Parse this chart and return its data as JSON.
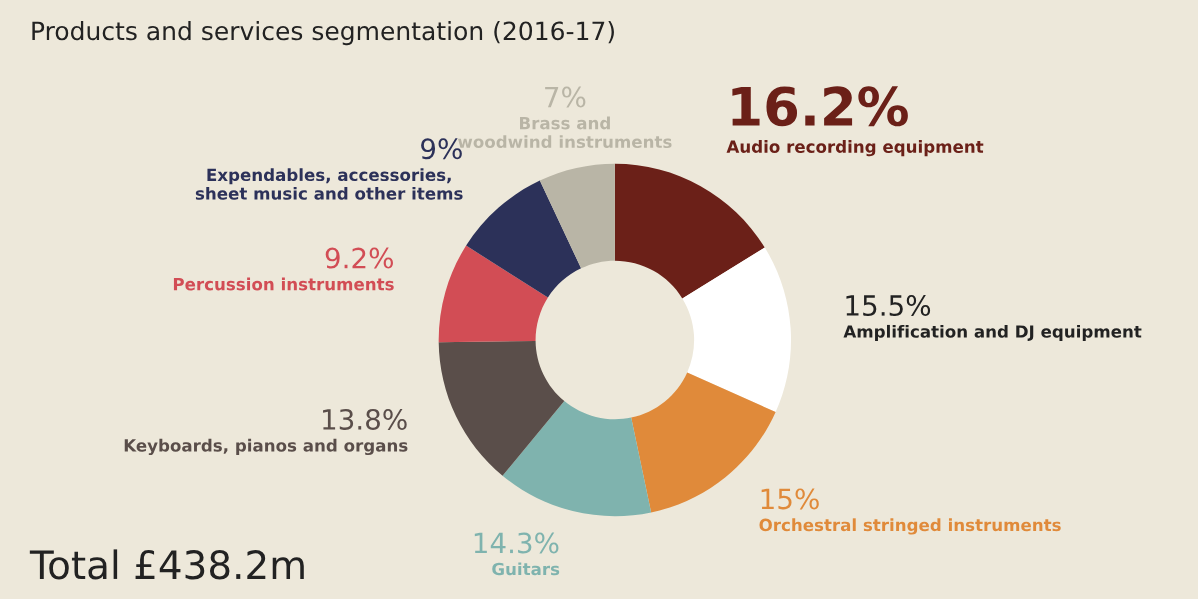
{
  "chart_data": {
    "type": "donut",
    "title": "Products and services segmentation (2016-17)",
    "categories": [
      "Audio recording equipment",
      "Amplification and DJ equipment",
      "Orchestral stringed instruments",
      "Guitars",
      "Keyboards, pianos and organs",
      "Percussion instruments",
      "Expendables, accessories,\nsheet music and other items",
      "Brass and\nwoodwind instruments"
    ],
    "values": [
      16.2,
      15.5,
      15,
      14.3,
      13.8,
      9.2,
      9,
      7
    ],
    "colors": [
      "#6b2018",
      "#ffffff",
      "#e08a3a",
      "#7fb3ae",
      "#5a4e4a",
      "#d24d55",
      "#2c3159",
      "#b9b5a6"
    ],
    "value_labels": [
      "16.2%",
      "15.5%",
      "15%",
      "14.3%",
      "13.8%",
      "9.2%",
      "9%",
      "7%"
    ],
    "annotations": [
      "Total £438.2m"
    ]
  }
}
